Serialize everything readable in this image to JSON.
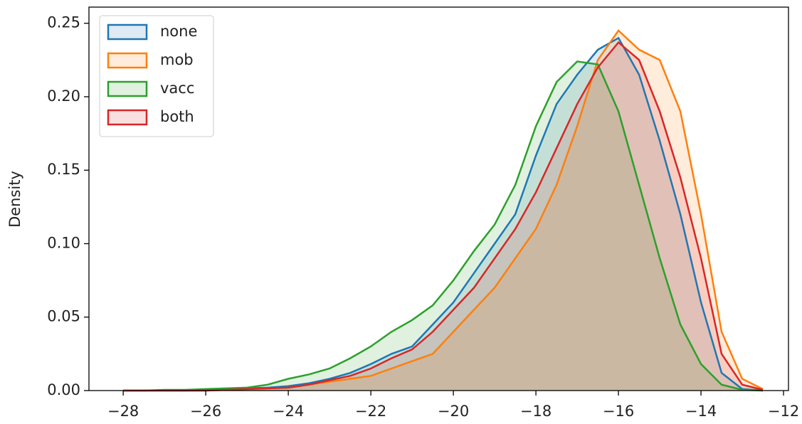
{
  "chart_data": {
    "type": "kde",
    "ylabel": "Density",
    "x": [
      -28,
      -27.5,
      -27,
      -26.5,
      -26,
      -25.5,
      -25,
      -24.5,
      -24,
      -23.5,
      -23,
      -22.5,
      -22,
      -21.5,
      -21,
      -20.5,
      -20,
      -19.5,
      -19,
      -18.5,
      -18,
      -17.5,
      -17,
      -16.5,
      -16,
      -15.5,
      -15,
      -14.5,
      -14,
      -13.5,
      -13,
      -12.5
    ],
    "series": [
      {
        "name": "none",
        "color": "#1f77b4",
        "values": [
          0,
          0,
          0,
          0,
          0.0005,
          0.001,
          0.0015,
          0.002,
          0.003,
          0.005,
          0.008,
          0.012,
          0.018,
          0.025,
          0.03,
          0.045,
          0.06,
          0.08,
          0.1,
          0.12,
          0.16,
          0.195,
          0.215,
          0.232,
          0.24,
          0.215,
          0.17,
          0.12,
          0.06,
          0.012,
          0.001,
          0
        ]
      },
      {
        "name": "mob",
        "color": "#ff7f0e",
        "values": [
          0,
          0,
          0,
          0,
          0,
          0.0005,
          0.001,
          0.0015,
          0.002,
          0.004,
          0.006,
          0.008,
          0.01,
          0.015,
          0.02,
          0.025,
          0.04,
          0.055,
          0.07,
          0.09,
          0.11,
          0.14,
          0.18,
          0.225,
          0.245,
          0.232,
          0.225,
          0.19,
          0.12,
          0.04,
          0.008,
          0.001
        ]
      },
      {
        "name": "vacc",
        "color": "#2ca02c",
        "values": [
          0,
          0,
          0.0005,
          0.0005,
          0.001,
          0.0015,
          0.002,
          0.004,
          0.008,
          0.011,
          0.015,
          0.022,
          0.03,
          0.04,
          0.048,
          0.058,
          0.075,
          0.095,
          0.113,
          0.14,
          0.18,
          0.21,
          0.224,
          0.222,
          0.19,
          0.14,
          0.09,
          0.045,
          0.018,
          0.004,
          0.0005,
          0
        ]
      },
      {
        "name": "both",
        "color": "#d62728",
        "values": [
          0,
          0,
          0,
          0,
          0,
          0.0005,
          0.001,
          0.0015,
          0.002,
          0.004,
          0.007,
          0.01,
          0.015,
          0.022,
          0.028,
          0.04,
          0.055,
          0.07,
          0.09,
          0.11,
          0.135,
          0.165,
          0.195,
          0.22,
          0.237,
          0.225,
          0.19,
          0.145,
          0.09,
          0.025,
          0.004,
          0.0005
        ]
      }
    ],
    "xlim": [
      -28.83,
      -11.88
    ],
    "ylim": [
      0,
      0.261
    ],
    "xticks": [
      {
        "value": -28,
        "label": "−28"
      },
      {
        "value": -26,
        "label": "−26"
      },
      {
        "value": -24,
        "label": "−24"
      },
      {
        "value": -22,
        "label": "−22"
      },
      {
        "value": -20,
        "label": "−20"
      },
      {
        "value": -18,
        "label": "−18"
      },
      {
        "value": -16,
        "label": "−16"
      },
      {
        "value": -14,
        "label": "−14"
      },
      {
        "value": -12,
        "label": "−12"
      }
    ],
    "yticks": [
      {
        "value": 0,
        "label": "0.00"
      },
      {
        "value": 0.05,
        "label": "0.05"
      },
      {
        "value": 0.1,
        "label": "0.10"
      },
      {
        "value": 0.15,
        "label": "0.15"
      },
      {
        "value": 0.2,
        "label": "0.20"
      },
      {
        "value": 0.25,
        "label": "0.25"
      }
    ],
    "legend": "upper left"
  }
}
